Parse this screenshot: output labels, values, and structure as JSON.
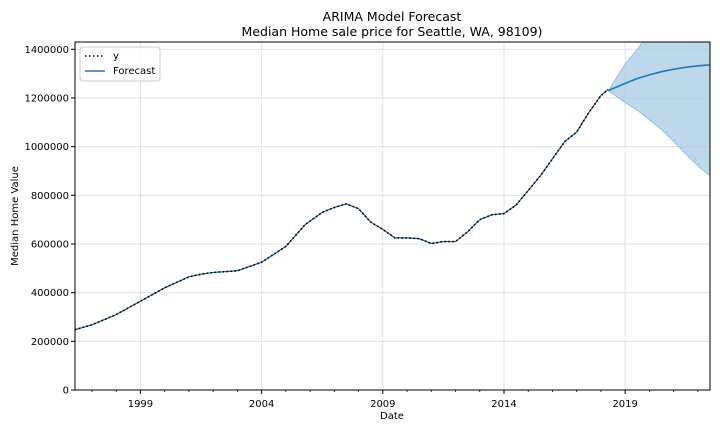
{
  "chart_data": {
    "type": "line",
    "title": "ARIMA Model Forecast",
    "subtitle": "Median Home sale price for Seattle, WA, 98109)",
    "xlabel": "Date",
    "ylabel": "Median Home Value",
    "xlim": [
      1996.3,
      2022.5
    ],
    "ylim": [
      0,
      1430000
    ],
    "xticks": [
      1999,
      2004,
      2009,
      2014,
      2019
    ],
    "yticks": [
      0,
      200000,
      400000,
      600000,
      800000,
      1000000,
      1200000,
      1400000
    ],
    "grid": true,
    "legend_position": "top-left",
    "colors": {
      "observed": "#000000",
      "observed_inner": "#1f5f8b",
      "forecast": "#1f77b4",
      "band": "#a6cbe3"
    },
    "series": [
      {
        "name": "y",
        "style": "dotted",
        "x": [
          1996.3,
          1997.0,
          1998.0,
          1999.0,
          2000.0,
          2001.0,
          2001.5,
          2002.0,
          2003.0,
          2004.0,
          2005.0,
          2005.8,
          2006.5,
          2007.0,
          2007.5,
          2008.0,
          2008.5,
          2009.0,
          2009.5,
          2010.0,
          2010.5,
          2011.0,
          2011.5,
          2012.0,
          2012.5,
          2013.0,
          2013.5,
          2014.0,
          2014.5,
          2015.0,
          2015.5,
          2016.0,
          2016.5,
          2017.0,
          2017.5,
          2018.0,
          2018.3
        ],
        "values": [
          248000,
          268000,
          310000,
          365000,
          420000,
          465000,
          476000,
          483000,
          490000,
          525000,
          590000,
          680000,
          730000,
          750000,
          765000,
          745000,
          690000,
          660000,
          625000,
          625000,
          622000,
          602000,
          610000,
          610000,
          650000,
          700000,
          720000,
          725000,
          760000,
          820000,
          880000,
          950000,
          1020000,
          1060000,
          1140000,
          1210000,
          1235000
        ]
      },
      {
        "name": "Forecast",
        "style": "solid",
        "x": [
          2018.3,
          2019.0,
          2019.5,
          2020.0,
          2020.5,
          2021.0,
          2021.5,
          2022.0,
          2022.5
        ],
        "values": [
          1230000,
          1260000,
          1280000,
          1295000,
          1308000,
          1318000,
          1326000,
          1332000,
          1336000
        ],
        "lower": [
          1230000,
          1180000,
          1150000,
          1110000,
          1070000,
          1020000,
          970000,
          920000,
          880000
        ],
        "upper": [
          1230000,
          1340000,
          1400000,
          1470000,
          1530000,
          1600000,
          1650000,
          1700000,
          1750000
        ]
      }
    ]
  }
}
